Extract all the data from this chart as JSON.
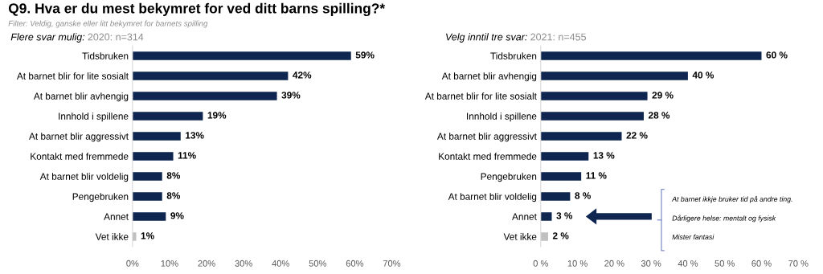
{
  "chart_data": [
    {
      "type": "bar",
      "orientation": "horizontal",
      "title": "Q9. Hva er du mest bekymret for ved ditt barns spilling?*",
      "subtitle": "Filter: Veldig, ganske eller litt bekymret for barnets spilling",
      "annotations": [
        "Flere svar mulig:",
        "2020: n=314"
      ],
      "categories": [
        "Tidsbruken",
        "At barnet blir for lite sosialt",
        "At barnet blir avhengig",
        "Innhold i spillene",
        "At barnet blir aggressivt",
        "Kontakt med fremmede",
        "At barnet blir voldelig",
        "Pengebruken",
        "Annet",
        "Vet ikke"
      ],
      "values": [
        59,
        42,
        39,
        19,
        13,
        11,
        8,
        8,
        9,
        1
      ],
      "value_labels": [
        "59%",
        "42%",
        "39%",
        "19%",
        "13%",
        "11%",
        "8%",
        "8%",
        "9%",
        "1%"
      ],
      "colors": [
        "#0e2650",
        "#0e2650",
        "#0e2650",
        "#0e2650",
        "#0e2650",
        "#0e2650",
        "#0e2650",
        "#0e2650",
        "#0e2650",
        "#c0c0c0"
      ],
      "xlim": [
        0,
        70
      ],
      "xticks": [
        {
          "value": 0,
          "label": "0%"
        },
        {
          "value": 10,
          "label": "10%"
        },
        {
          "value": 20,
          "label": "20%"
        },
        {
          "value": 30,
          "label": "30%"
        },
        {
          "value": 40,
          "label": "40%"
        },
        {
          "value": 50,
          "label": "50%"
        },
        {
          "value": 60,
          "label": "60%"
        },
        {
          "value": 70,
          "label": "70%"
        }
      ],
      "grid": false,
      "legend": false
    },
    {
      "type": "bar",
      "orientation": "horizontal",
      "annotations": [
        "Velg inntil tre svar:",
        "2021: n=455",
        "At barnet ikkje bruker tid på andre ting.",
        "Dårligere helse: mentalt og fysisk",
        "Mister fantasi"
      ],
      "categories": [
        "Tidsbruken",
        "At barnet blir avhengig",
        "At barnet blir for lite sosialt",
        "Innhold i spillene",
        "At barnet blir aggressivt",
        "Kontakt med fremmede",
        "Pengebruken",
        "At barnet blir voldelig",
        "Annet",
        "Vet ikke"
      ],
      "values": [
        60,
        40,
        29,
        28,
        22,
        13,
        11,
        8,
        3,
        2
      ],
      "value_labels": [
        "60 %",
        "40 %",
        "29 %",
        "28 %",
        "22 %",
        "13 %",
        "11 %",
        "8 %",
        "3 %",
        "2 %"
      ],
      "colors": [
        "#0e2650",
        "#0e2650",
        "#0e2650",
        "#0e2650",
        "#0e2650",
        "#0e2650",
        "#0e2650",
        "#0e2650",
        "#0e2650",
        "#c0c0c0"
      ],
      "xlim": [
        0,
        70
      ],
      "xticks": [
        {
          "value": 0,
          "label": "0 %"
        },
        {
          "value": 10,
          "label": "10 %"
        },
        {
          "value": 20,
          "label": "20 %"
        },
        {
          "value": 30,
          "label": "30 %"
        },
        {
          "value": 40,
          "label": "40 %"
        },
        {
          "value": 50,
          "label": "50 %"
        },
        {
          "value": 60,
          "label": "60 %"
        },
        {
          "value": 70,
          "label": "70 %"
        }
      ],
      "grid": false,
      "legend": false
    }
  ]
}
